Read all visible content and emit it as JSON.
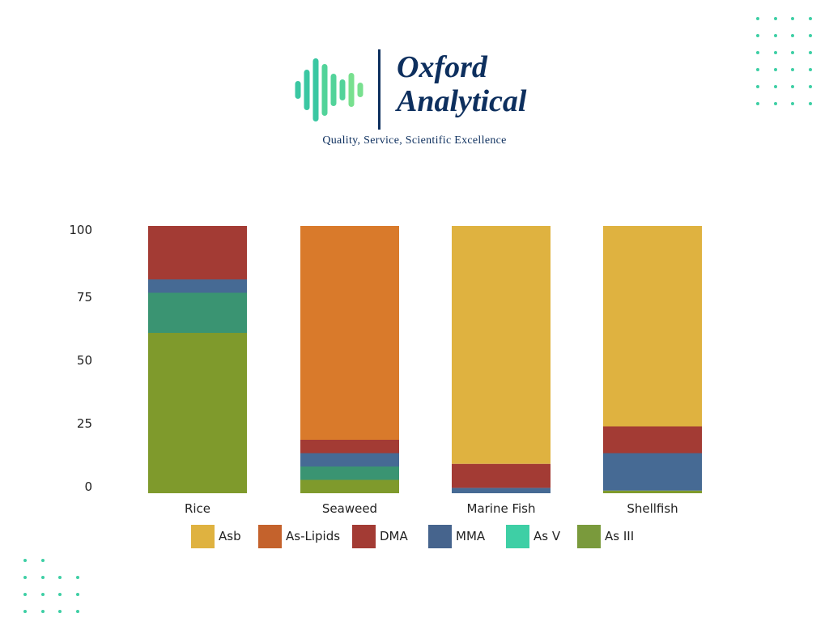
{
  "brand": {
    "name_line1": "Oxford",
    "name_line2": "Analytical",
    "tagline": "Quality, Service, Scientific Excellence",
    "colors": {
      "navy": "#0d2f5e",
      "wave_light": "#78e08f",
      "wave_mid": "#52d39a",
      "wave_dark": "#3ac7a2",
      "dots": "#3ecfa5"
    },
    "icon": "sound-wave-logo-icon"
  },
  "chart_data": {
    "type": "bar",
    "stacked": true,
    "title": "",
    "xlabel": "",
    "ylabel": "",
    "ylim": [
      0,
      100
    ],
    "yticks": [
      0,
      25,
      50,
      75,
      100
    ],
    "grid": false,
    "legend_position": "bottom",
    "categories": [
      "Rice",
      "Seaweed",
      "Marine Fish",
      "Shellfish"
    ],
    "series": [
      {
        "name": "As III",
        "color": "#7f9a2c",
        "values": [
          60,
          5,
          0,
          1
        ]
      },
      {
        "name": "As V",
        "color": "#3a9472",
        "values": [
          15,
          5,
          0,
          0
        ]
      },
      {
        "name": "MMA",
        "color": "#466a94",
        "values": [
          5,
          5,
          2,
          14
        ]
      },
      {
        "name": "DMA",
        "color": "#a33b34",
        "values": [
          20,
          5,
          9,
          10
        ]
      },
      {
        "name": "As-Lipids",
        "color": "#d97a2b",
        "values": [
          0,
          80,
          0,
          0
        ]
      },
      {
        "name": "Asb",
        "color": "#dfb240",
        "values": [
          0,
          0,
          89,
          75
        ]
      }
    ],
    "legend": [
      {
        "name": "Asb",
        "color": "#dfb240"
      },
      {
        "name": "As-Lipids",
        "color": "#c4622c"
      },
      {
        "name": "DMA",
        "color": "#a33b34"
      },
      {
        "name": "MMA",
        "color": "#46648d"
      },
      {
        "name": "As V",
        "color": "#3ecfa5"
      },
      {
        "name": "As III",
        "color": "#7a9a3c"
      }
    ]
  }
}
